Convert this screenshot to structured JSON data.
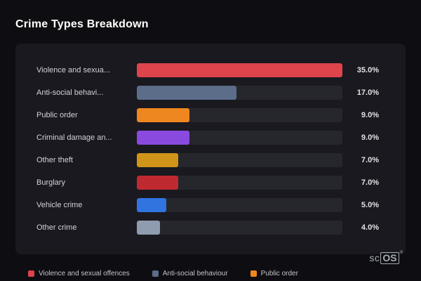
{
  "page": {
    "title": "Crime Types Breakdown",
    "logo": {
      "prefix": "sc",
      "suffix": "OS",
      "registered": "®"
    }
  },
  "chart_data": {
    "type": "bar",
    "orientation": "horizontal",
    "title": "Crime Types Breakdown",
    "max_value": 35.0,
    "categories": [
      "Violence and sexua...",
      "Anti-social behavi...",
      "Public order",
      "Criminal damage an...",
      "Other theft",
      "Burglary",
      "Vehicle crime",
      "Other crime"
    ],
    "values": [
      35.0,
      17.0,
      9.0,
      9.0,
      7.0,
      7.0,
      5.0,
      4.0
    ],
    "value_labels": [
      "35.0%",
      "17.0%",
      "9.0%",
      "9.0%",
      "7.0%",
      "7.0%",
      "5.0%",
      "4.0%"
    ],
    "bar_colors": [
      "#dd444b",
      "#5c6d8a",
      "#ee8720",
      "#8a4ae0",
      "#cf9418",
      "#bf2a30",
      "#3174e0",
      "#8f9cb0"
    ],
    "legend_position": "bottom",
    "legend": [
      {
        "label": "Violence and sexual offences",
        "color": "#dd444b"
      },
      {
        "label": "Anti-social behaviour",
        "color": "#5c6d8a"
      },
      {
        "label": "Public order",
        "color": "#ee8720"
      }
    ]
  },
  "colors": {
    "background": "#0e0e12",
    "card": "#19191f",
    "track": "#26262d",
    "title_text": "#ffffff",
    "label_text": "#d2d2d8",
    "value_text": "#e2e2e6",
    "legend_text": "#c2c2c8"
  }
}
